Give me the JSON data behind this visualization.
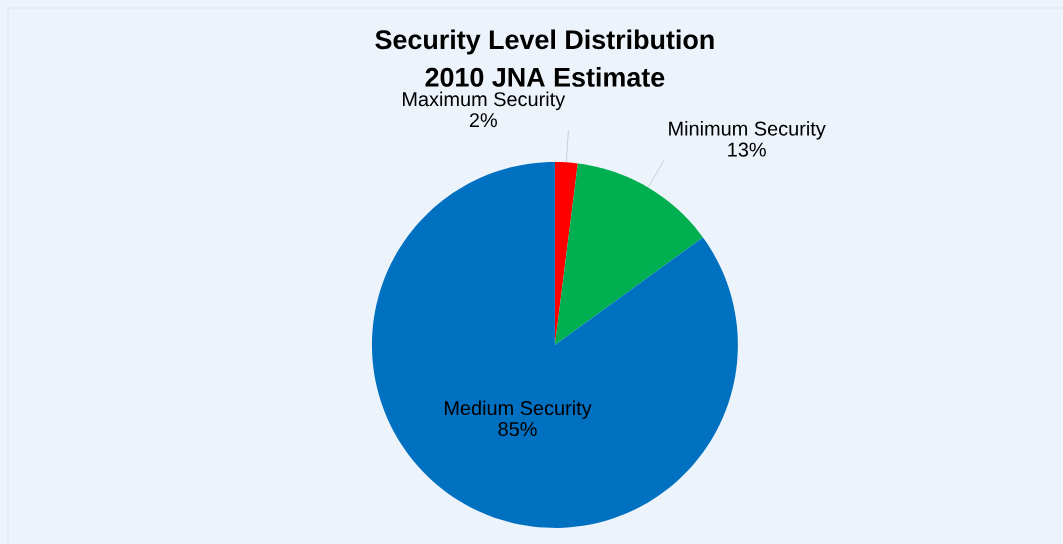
{
  "chart_data": {
    "type": "pie",
    "title": "Security Level Distribution",
    "subtitle": "2010 JNA Estimate",
    "categories": [
      "Maximum Security",
      "Minimum Security",
      "Medium Security"
    ],
    "values": [
      2,
      13,
      85
    ],
    "value_labels": [
      "2%",
      "13%",
      "85%"
    ],
    "colors": [
      "#ff0000",
      "#00b050",
      "#0070c0"
    ]
  }
}
